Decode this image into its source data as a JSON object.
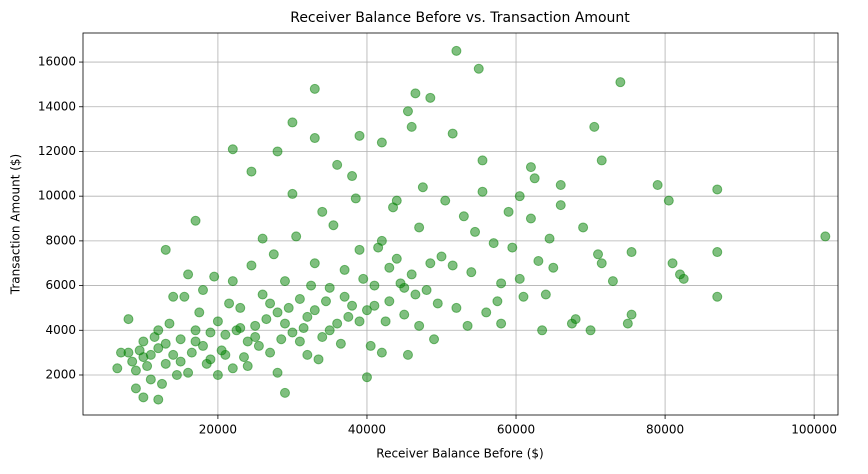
{
  "chart_data": {
    "type": "scatter",
    "title": "Receiver Balance Before vs. Transaction Amount",
    "x_label": "Receiver Balance Before ($)",
    "y_label": "Transaction Amount ($)",
    "color": "#008000",
    "opacity": 0.5,
    "grid": true,
    "xlim": [
      1900,
      103200
    ],
    "ylim": [
      210,
      17300
    ],
    "xticks": [
      20000,
      40000,
      60000,
      80000,
      100000
    ],
    "yticks": [
      2000,
      4000,
      6000,
      8000,
      10000,
      12000,
      14000,
      16000
    ],
    "x": [
      52000,
      55000,
      74000,
      33000,
      46500,
      48500,
      45500,
      30000,
      70500,
      51500,
      33000,
      39000,
      42000,
      22000,
      28000,
      46000,
      71500,
      62000,
      55500,
      87000,
      79000,
      101500,
      87000,
      87000,
      82000,
      82500,
      81000,
      80500,
      75500,
      75000,
      75500,
      70000,
      67500,
      68000,
      71000,
      71500,
      66000,
      66000,
      60500,
      62500,
      69000,
      73000,
      64000,
      63500,
      58000,
      24500,
      13000,
      17000,
      40000,
      29000,
      12000,
      10000,
      6500,
      7000,
      8000,
      9000,
      10000,
      11000,
      12000,
      13000,
      14000,
      15000,
      16000,
      17000,
      18000,
      19000,
      20000,
      21000,
      22000,
      23000,
      24000,
      25000,
      26000,
      27000,
      28000,
      29000,
      30000,
      31000,
      32000,
      33000,
      34000,
      35000,
      36000,
      37000,
      38000,
      39000,
      40000,
      41000,
      42000,
      43000,
      44000,
      45000,
      46000,
      47000,
      48000,
      49000,
      50000,
      52000,
      53000,
      54000,
      56000,
      57000,
      58000,
      59000,
      61000,
      63000,
      65000,
      8500,
      9500,
      10500,
      11500,
      12500,
      13500,
      14500,
      15500,
      16500,
      17500,
      18500,
      19500,
      20500,
      21500,
      22500,
      23500,
      24500,
      25500,
      26500,
      27500,
      28500,
      29500,
      30500,
      31500,
      32500,
      33500,
      34500,
      35500,
      36500,
      37500,
      38500,
      39500,
      40500,
      41500,
      42500,
      43500,
      44500,
      45500,
      46500,
      47500,
      48500,
      49500,
      50500,
      51500,
      53500,
      54500,
      55500,
      57500,
      59500,
      60500,
      62000,
      64500,
      11000,
      13000,
      15000,
      17000,
      19000,
      21000,
      23000,
      25000,
      27000,
      29000,
      31000,
      33000,
      35000,
      37000,
      39000,
      41000,
      43000,
      45000,
      47000,
      20000,
      22000,
      26000,
      30000,
      34000,
      38000,
      42000,
      44000,
      36000,
      32000,
      28000,
      24000,
      18000,
      16000,
      14000,
      12000,
      10000,
      9000,
      8000
    ],
    "values": [
      16500,
      15700,
      15100,
      14800,
      14600,
      14400,
      13800,
      13300,
      13100,
      12800,
      12600,
      12700,
      12400,
      12100,
      12000,
      13100,
      11600,
      11300,
      11600,
      10300,
      10500,
      8200,
      5500,
      7500,
      6500,
      6300,
      7000,
      9800,
      7500,
      4300,
      4700,
      4000,
      4300,
      4500,
      7400,
      7000,
      10500,
      9600,
      10000,
      10800,
      8600,
      6200,
      5600,
      4000,
      4300,
      11100,
      7600,
      8900,
      1900,
      1200,
      900,
      1000,
      2300,
      3000,
      4500,
      2200,
      2800,
      1800,
      3200,
      2500,
      2900,
      3600,
      2100,
      4000,
      3300,
      2700,
      4400,
      3800,
      2300,
      5000,
      3500,
      4200,
      5600,
      3000,
      4800,
      6200,
      3900,
      5400,
      4600,
      7000,
      3700,
      5900,
      4300,
      6700,
      5100,
      7600,
      4900,
      6000,
      8000,
      5300,
      7200,
      4700,
      6500,
      8600,
      5800,
      3600,
      7300,
      5000,
      9100,
      6600,
      4800,
      7900,
      6100,
      9300,
      5500,
      7100,
      6800,
      2600,
      3100,
      2400,
      3700,
      1600,
      4300,
      2000,
      5500,
      3000,
      4800,
      2500,
      6400,
      3100,
      5200,
      4000,
      2800,
      6900,
      3300,
      4500,
      7400,
      3600,
      5000,
      8200,
      4100,
      6000,
      2700,
      5300,
      8700,
      3400,
      4600,
      9900,
      6300,
      3300,
      7700,
      4400,
      9500,
      6100,
      2900,
      5600,
      10400,
      7000,
      5200,
      9800,
      6900,
      4200,
      8400,
      10200,
      5300,
      7700,
      6300,
      9000,
      8100,
      2900,
      3400,
      2600,
      3500,
      3900,
      2900,
      4100,
      3700,
      5200,
      4300,
      3500,
      4900,
      4000,
      5500,
      4400,
      5100,
      6800,
      5900,
      4200,
      2000,
      6200,
      8100,
      10100,
      9300,
      10900,
      3000,
      9800,
      11400,
      2900,
      2100,
      2400,
      5800,
      6500,
      5500,
      4000,
      3500,
      1400,
      3000
    ]
  }
}
